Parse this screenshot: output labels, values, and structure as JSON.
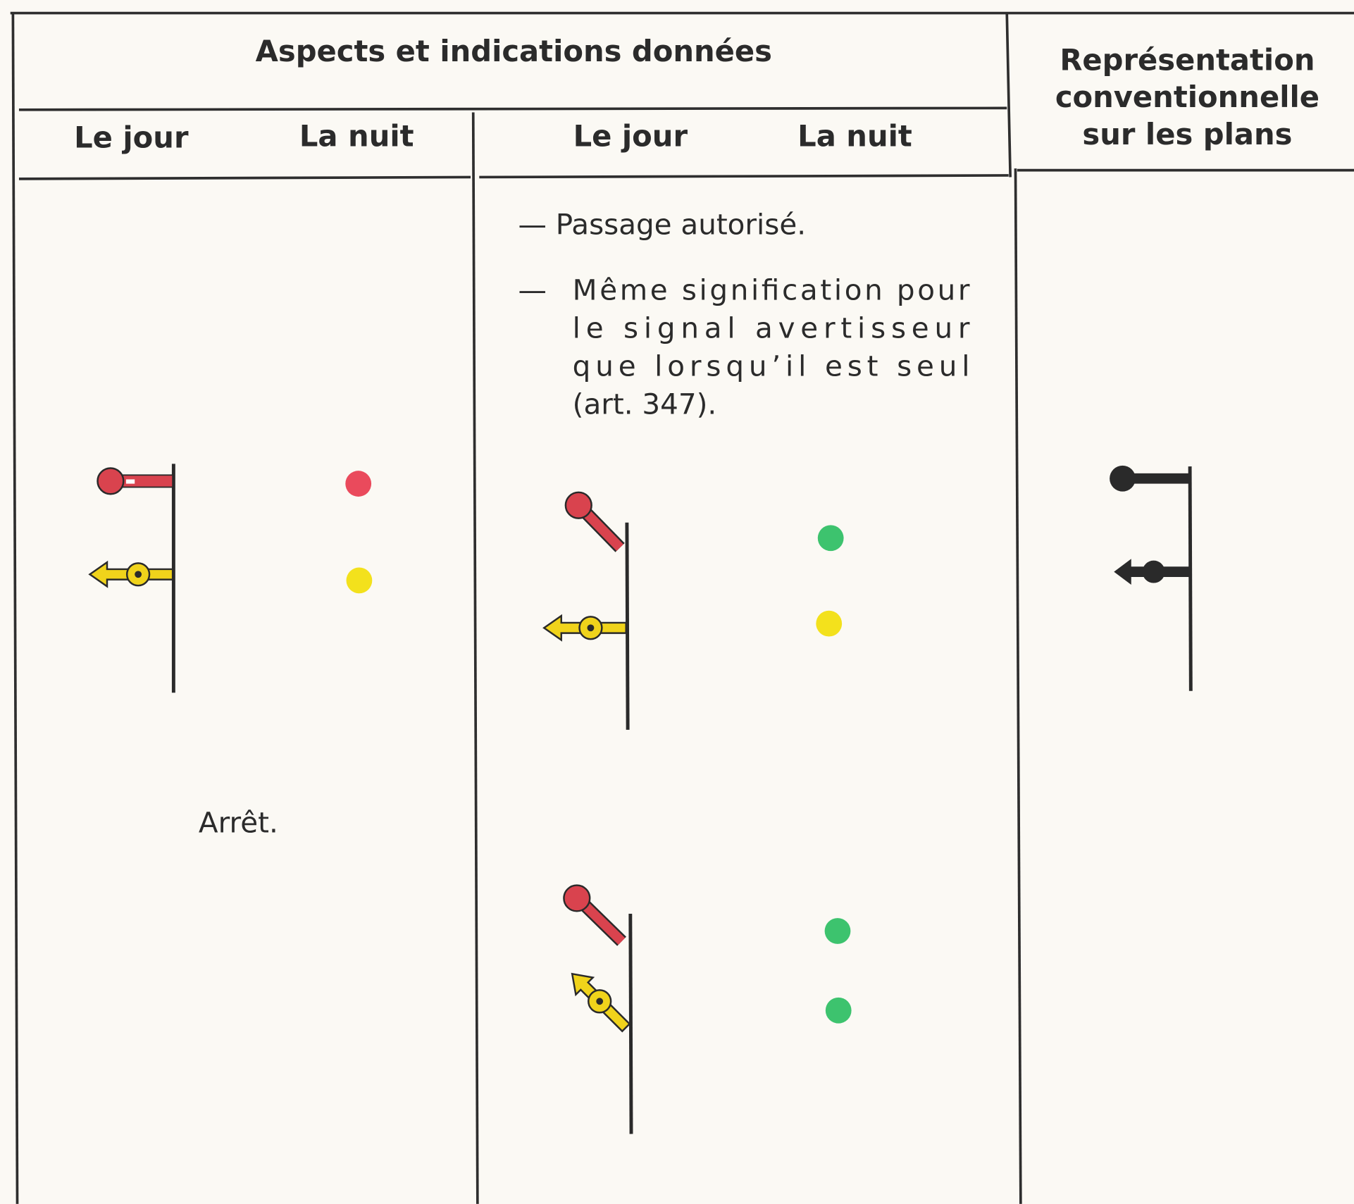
{
  "header": {
    "title": "Aspects et indications données",
    "representation": [
      "Représentation",
      "conventionnelle",
      "sur les plans"
    ]
  },
  "columns": [
    "Le jour",
    "La nuit",
    "Le jour",
    "La nuit"
  ],
  "rows": [
    {
      "indication": "Arrêt."
    },
    {
      "indication": "— Passage autorisé."
    },
    {
      "indication_dash": "—",
      "indication_lines": [
        "Même signification pour",
        "le signal avertisseur",
        "que lorsqu’il est seul",
        "(art. 347)."
      ]
    }
  ]
}
